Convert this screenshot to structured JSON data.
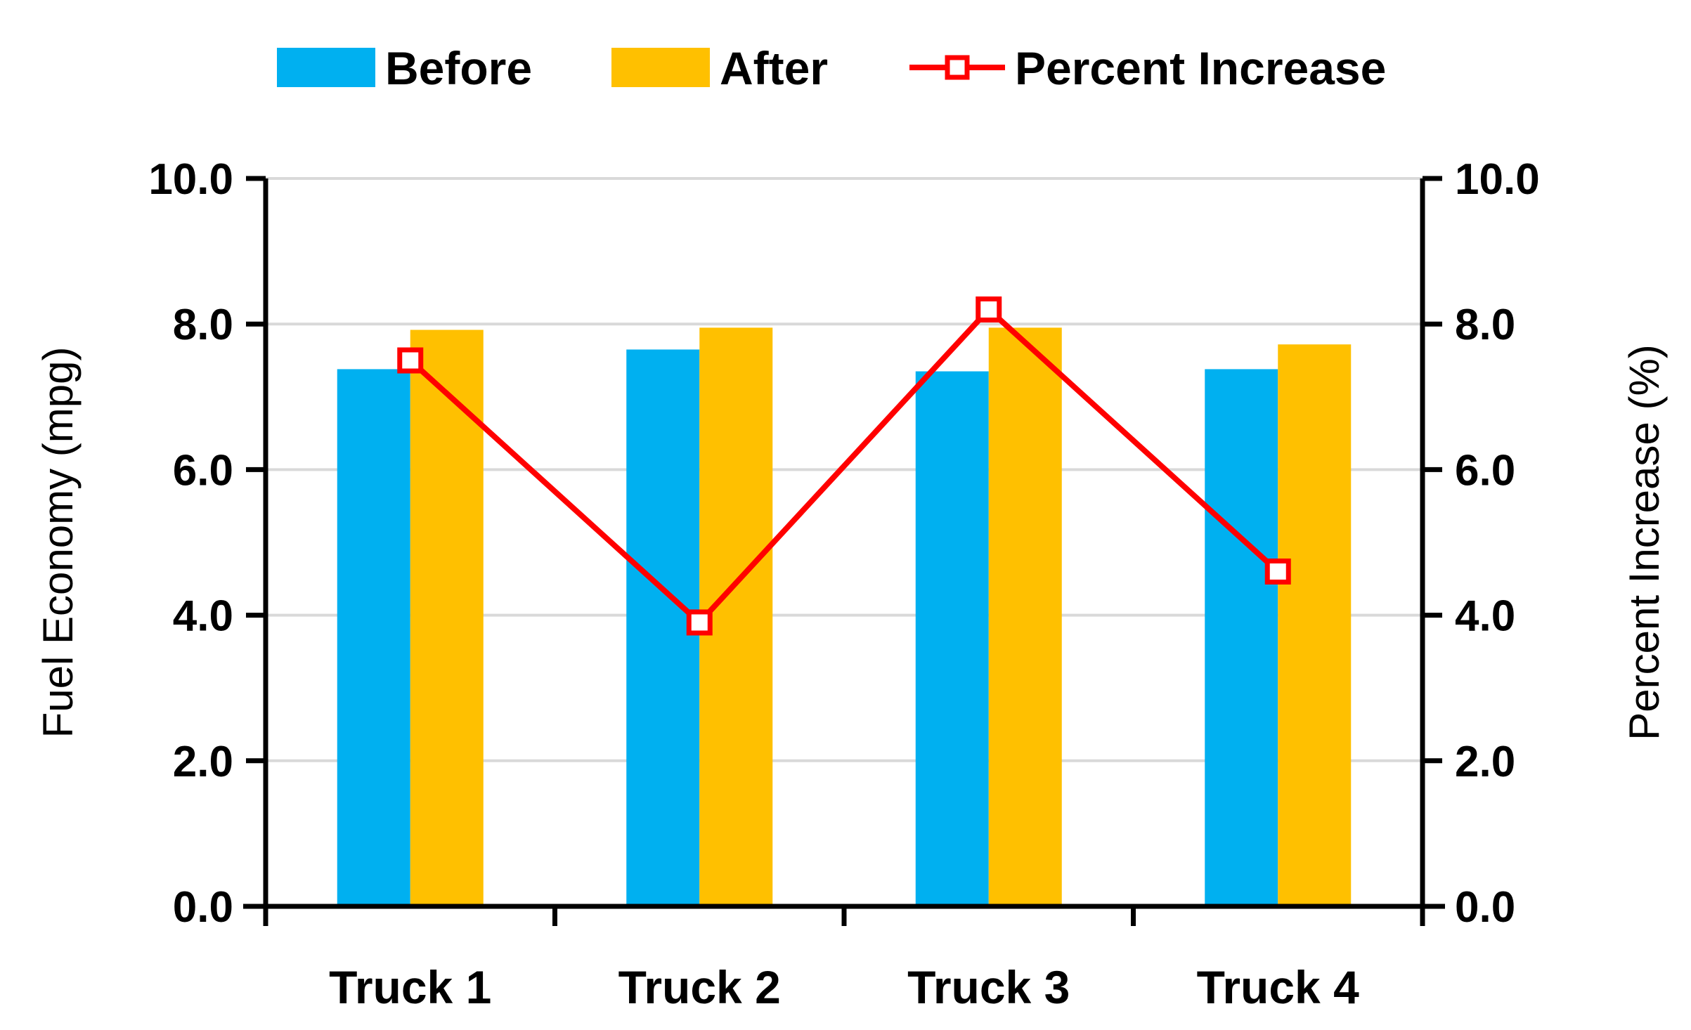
{
  "chart_data": {
    "type": "bar",
    "categories": [
      "Truck 1",
      "Truck 2",
      "Truck 3",
      "Truck 4"
    ],
    "series": [
      {
        "name": "Before",
        "axis": "left",
        "kind": "bar",
        "color": "#00B0F0",
        "values": [
          7.38,
          7.65,
          7.35,
          7.38
        ]
      },
      {
        "name": "After",
        "axis": "left",
        "kind": "bar",
        "color": "#FFC000",
        "values": [
          7.92,
          7.95,
          7.95,
          7.72
        ]
      },
      {
        "name": "Percent Increase",
        "axis": "right",
        "kind": "line",
        "color": "#FF0000",
        "values": [
          7.5,
          3.9,
          8.2,
          4.6
        ]
      }
    ],
    "ylabel": "Fuel Economy (mpg)",
    "y2label": "Percent Increase (%)",
    "ylim": [
      0,
      10
    ],
    "y2lim": [
      0,
      10
    ],
    "yticks": [
      "0.0",
      "2.0",
      "4.0",
      "6.0",
      "8.0",
      "10.0"
    ],
    "y2ticks": [
      "0.0",
      "2.0",
      "4.0",
      "6.0",
      "8.0",
      "10.0"
    ],
    "grid": true,
    "legend_position": "top-center"
  }
}
